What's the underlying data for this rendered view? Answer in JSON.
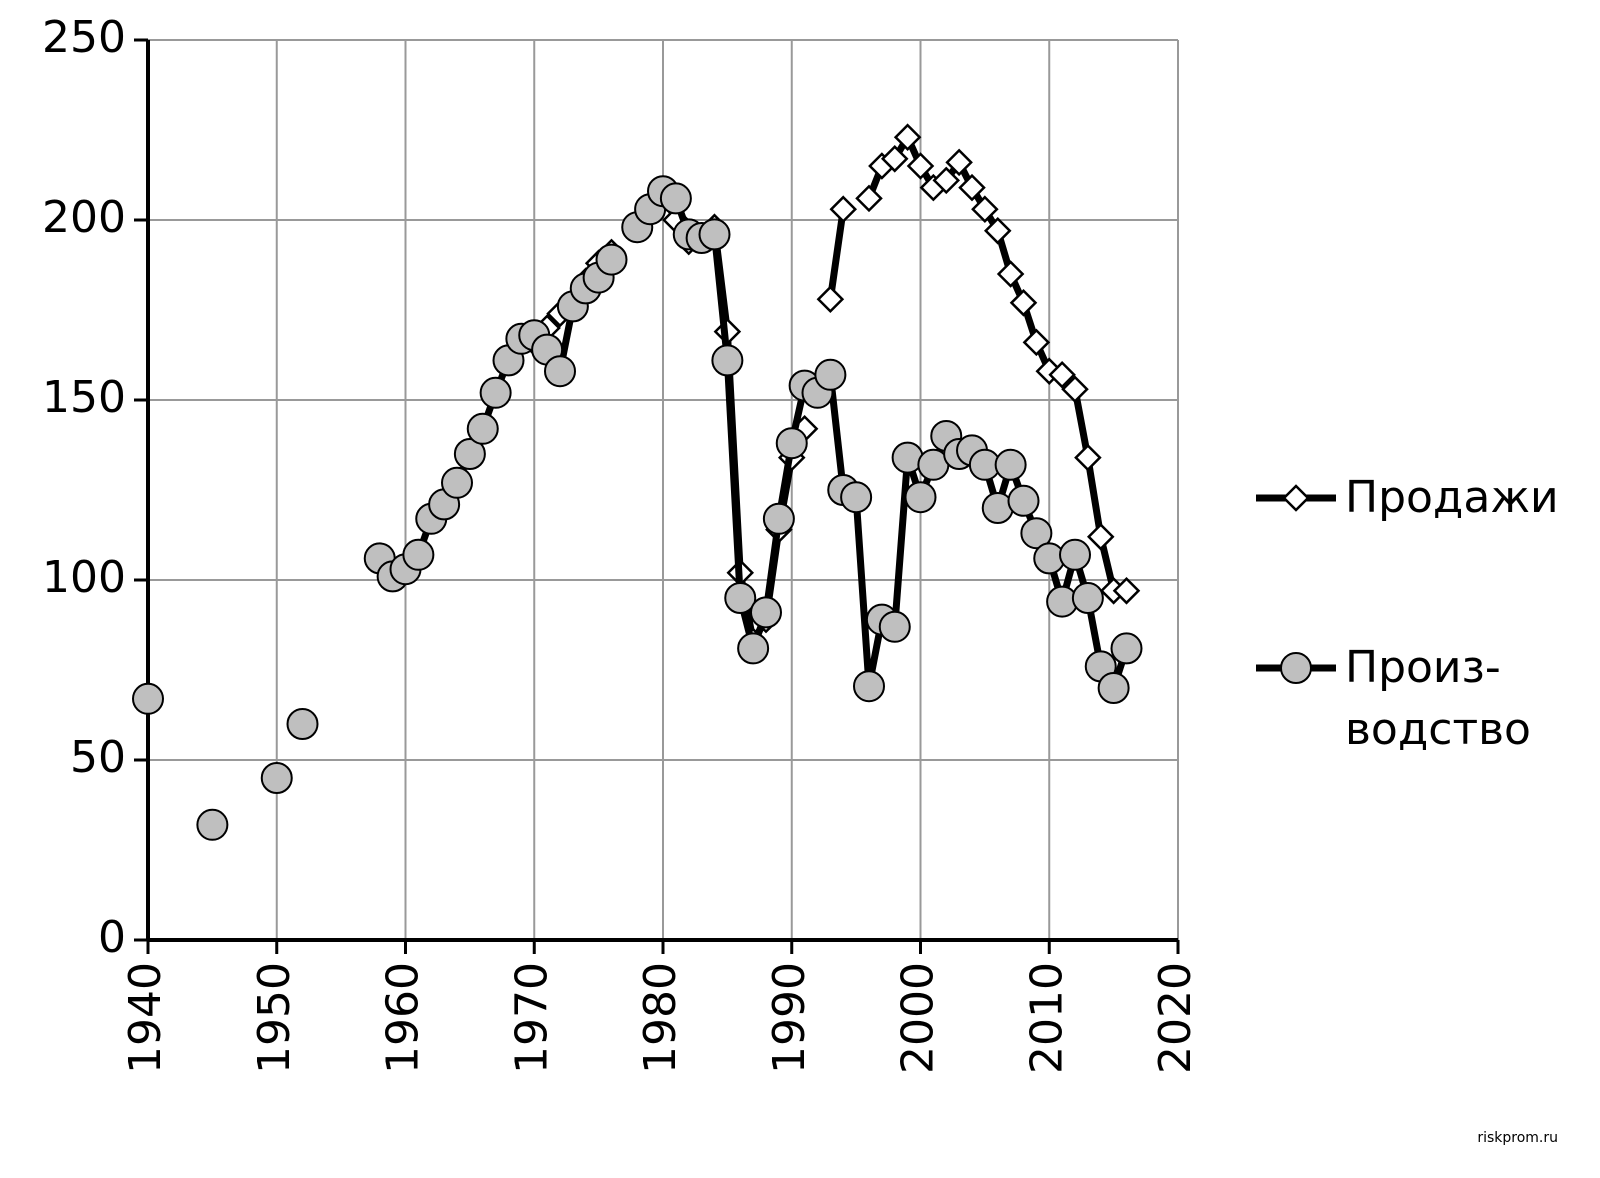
{
  "chart_data": {
    "type": "line",
    "x": [
      1940,
      1941,
      1942,
      1943,
      1944,
      1945,
      1946,
      1947,
      1948,
      1949,
      1950,
      1951,
      1952,
      1953,
      1954,
      1955,
      1956,
      1957,
      1958,
      1959,
      1960,
      1961,
      1962,
      1963,
      1964,
      1965,
      1966,
      1967,
      1968,
      1969,
      1970,
      1971,
      1972,
      1973,
      1974,
      1975,
      1976,
      1977,
      1978,
      1979,
      1980,
      1981,
      1982,
      1983,
      1984,
      1985,
      1986,
      1987,
      1988,
      1989,
      1990,
      1991,
      1992,
      1993,
      1994,
      1995,
      1996,
      1997,
      1998,
      1999,
      2000,
      2001,
      2002,
      2003,
      2004,
      2005,
      2006,
      2007,
      2008,
      2009,
      2010,
      2011,
      2012,
      2013,
      2014,
      2015,
      2016
    ],
    "series": [
      {
        "name": "Продажи",
        "color": "#000000",
        "marker": "diamond",
        "marker_color": "#ffffff",
        "values": [
          null,
          null,
          null,
          null,
          null,
          null,
          null,
          null,
          null,
          null,
          null,
          null,
          null,
          null,
          null,
          null,
          null,
          null,
          null,
          null,
          null,
          null,
          null,
          null,
          null,
          null,
          null,
          null,
          161,
          167,
          166,
          170,
          174,
          177,
          183,
          188,
          191,
          null,
          198,
          203,
          207,
          200,
          194,
          195,
          198,
          169,
          102,
          83,
          89,
          114,
          134,
          142,
          null,
          178,
          203,
          null,
          206,
          215,
          217,
          223,
          215,
          209,
          211,
          216,
          209,
          203,
          197,
          185,
          177,
          166,
          158,
          157,
          153,
          134,
          112,
          97,
          97
        ]
      },
      {
        "name": "Произ-\nводство",
        "color": "#000000",
        "marker": "circle",
        "marker_color": "#bfbfbf",
        "values": [
          67,
          null,
          null,
          null,
          null,
          32,
          null,
          null,
          null,
          null,
          45,
          null,
          60,
          null,
          null,
          null,
          null,
          null,
          106,
          101,
          103,
          107,
          117,
          121,
          127,
          135,
          142,
          152,
          161,
          167,
          168,
          164,
          158,
          176,
          181,
          184,
          189,
          null,
          198,
          203,
          208,
          206,
          196,
          195,
          196,
          161,
          95,
          81,
          91,
          117,
          138,
          154,
          152,
          157,
          125,
          123,
          70.5,
          89,
          87,
          134,
          123,
          132,
          140,
          135,
          136,
          132,
          120,
          132,
          122,
          113,
          106,
          94,
          107,
          95,
          76,
          70,
          81
        ]
      }
    ],
    "xlim": [
      1940,
      2020
    ],
    "xticks": [
      1940,
      1950,
      1960,
      1970,
      1980,
      1990,
      2000,
      2010,
      2020
    ],
    "ylim": [
      0,
      250
    ],
    "yticks": [
      0,
      50,
      100,
      150,
      200,
      250
    ],
    "grid": true,
    "legend": "right",
    "watermark": "riskprom.ru"
  }
}
